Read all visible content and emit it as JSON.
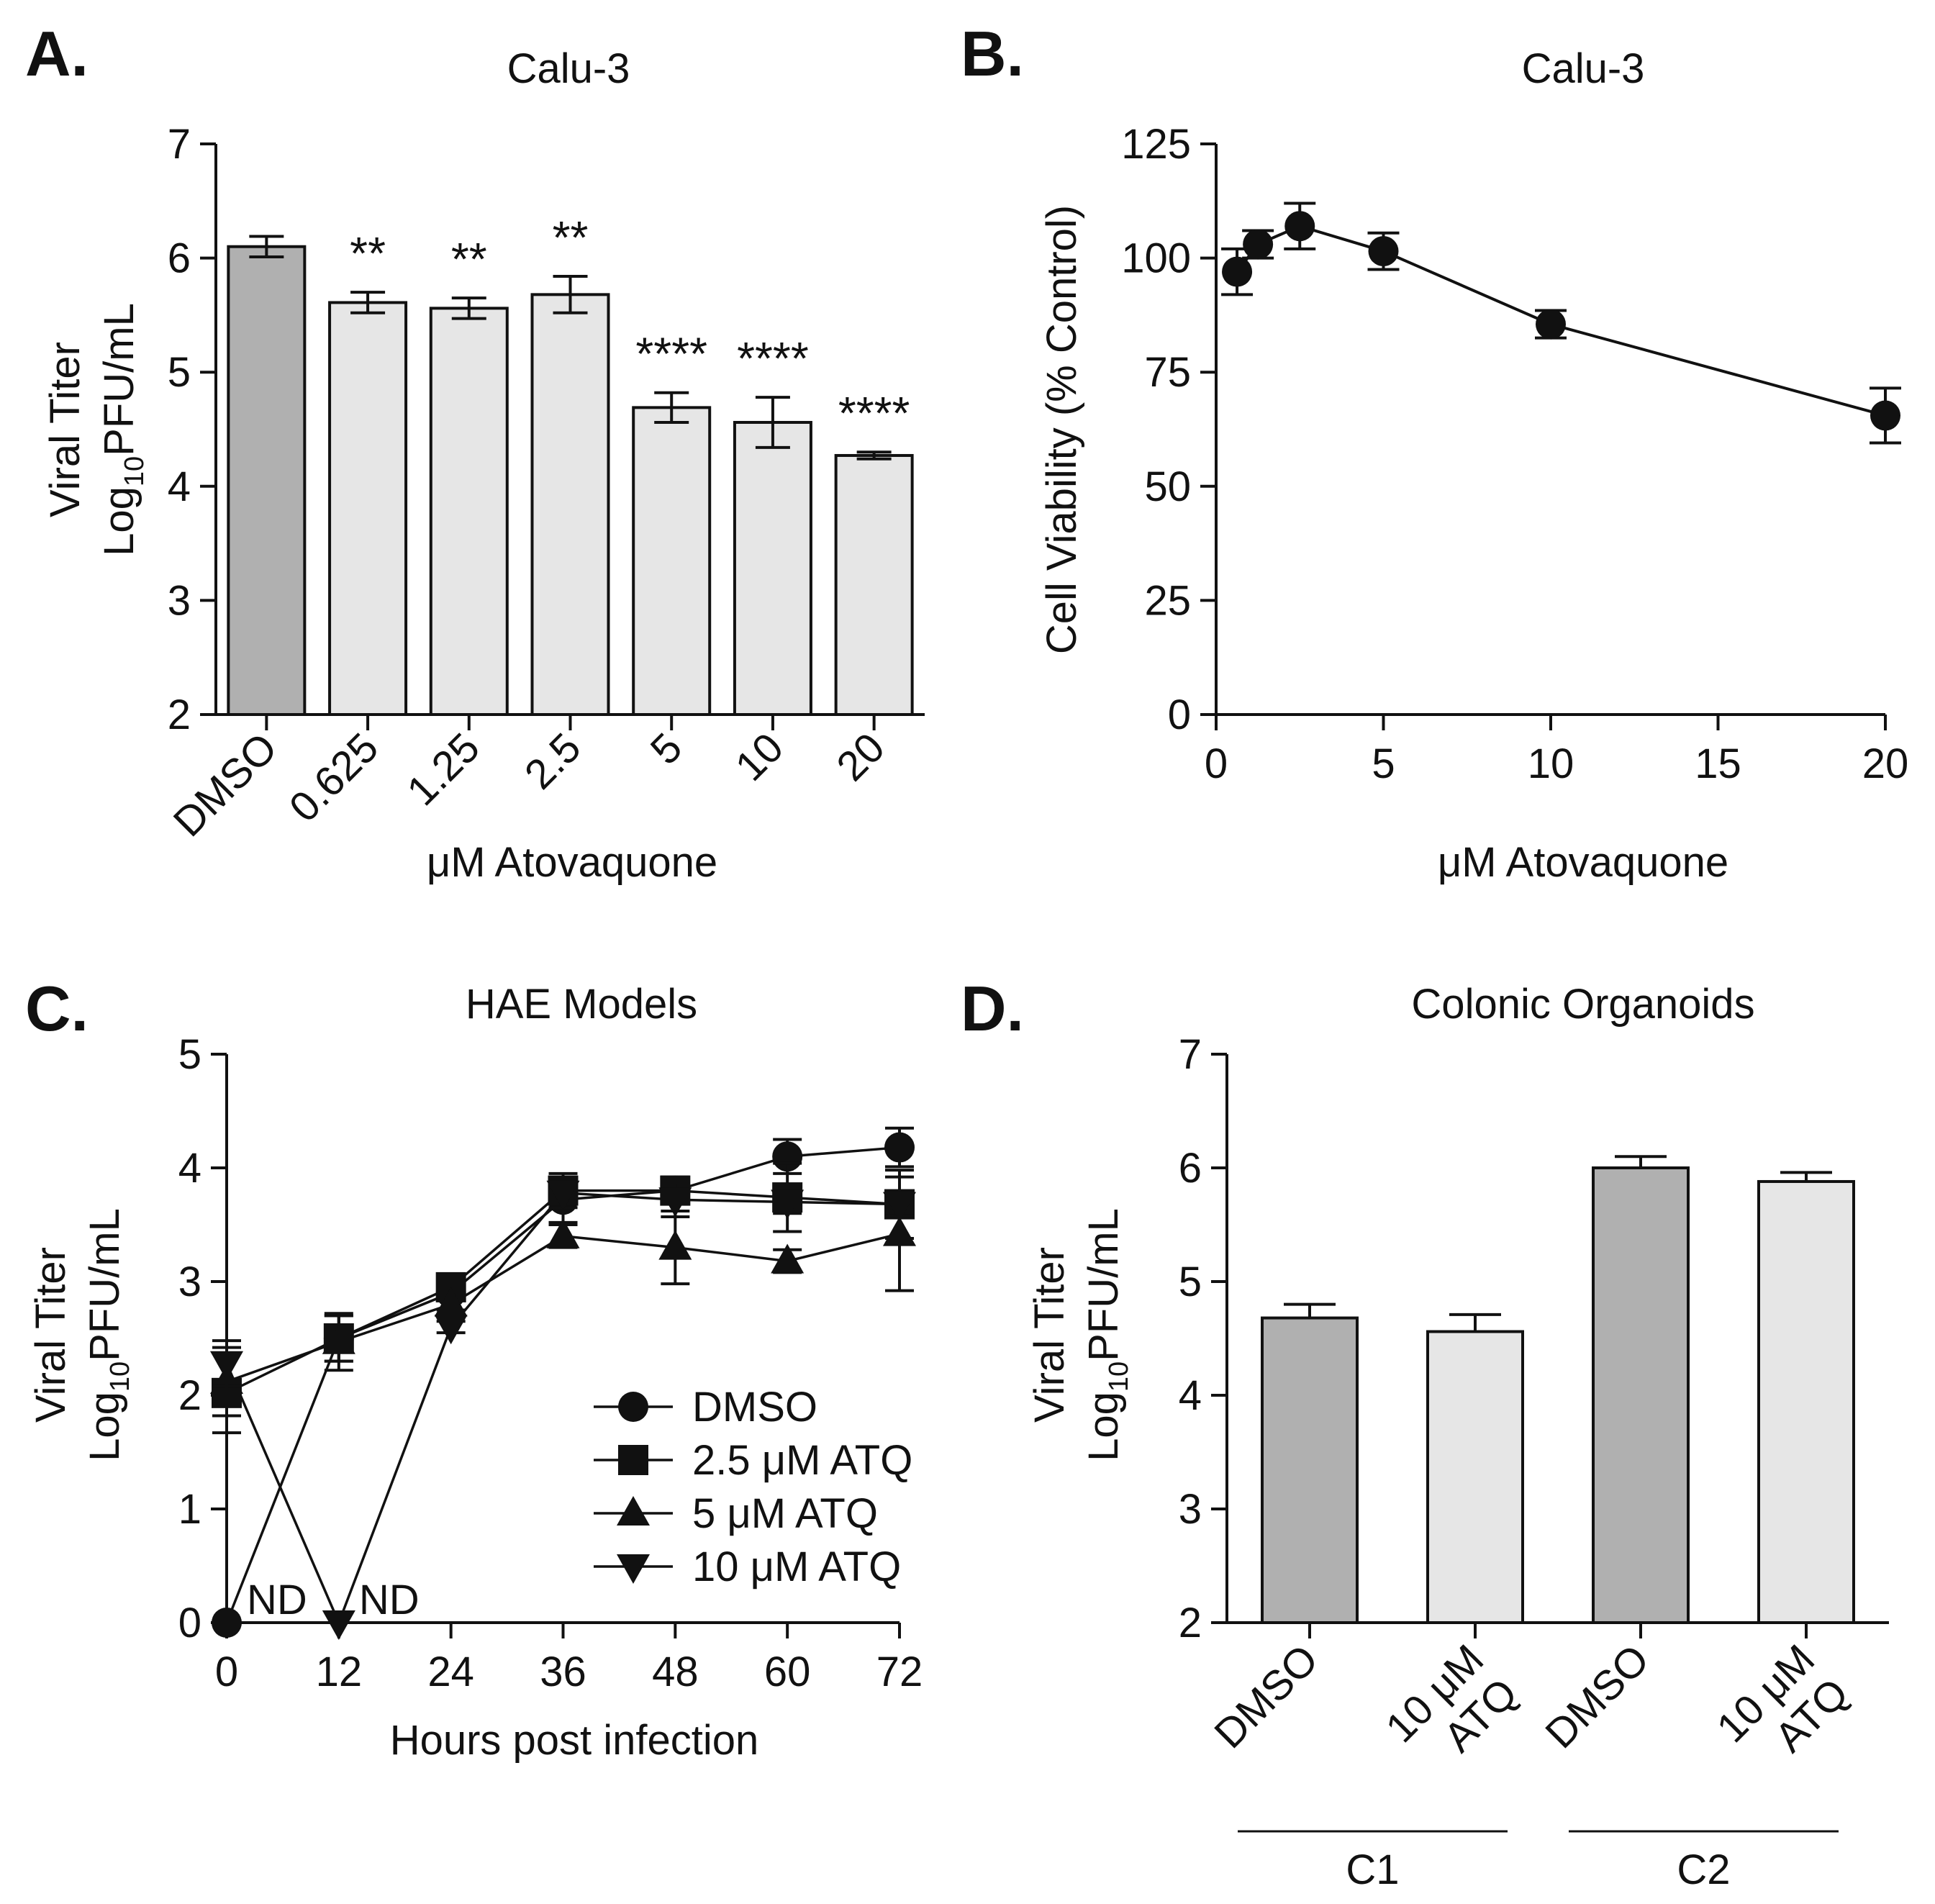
{
  "colors": {
    "ink": "#111111",
    "dmso_bar": "#b0b0b0",
    "treated_bar": "#e6e6e6",
    "marker": "#111111"
  },
  "panels": [
    {
      "id": "A",
      "letter": "A.",
      "chart_data": {
        "type": "bar",
        "title": "Calu-3",
        "xlabel": "μM Atovaquone",
        "ylabel_line1": "Viral Titer",
        "ylabel_log": "Log",
        "ylabel_sub": "10",
        "ylabel_rest": "PFU/mL",
        "ylim": [
          2,
          7
        ],
        "yticks": [
          "2",
          "3",
          "4",
          "5",
          "6",
          "7"
        ],
        "categories": [
          "DMSO",
          "0.625",
          "1.25",
          "2.5",
          "5",
          "10",
          "20"
        ],
        "values": [
          6.1,
          5.61,
          5.56,
          5.68,
          4.69,
          4.56,
          4.27
        ],
        "errors": [
          0.09,
          0.09,
          0.09,
          0.16,
          0.13,
          0.22,
          0.03
        ],
        "fill": [
          "dmso",
          "treated",
          "treated",
          "treated",
          "treated",
          "treated",
          "treated"
        ],
        "significance": [
          "",
          "**",
          "**",
          "**",
          "****",
          "****",
          "****"
        ]
      }
    },
    {
      "id": "B",
      "letter": "B.",
      "chart_data": {
        "type": "line",
        "title": "Calu-3",
        "xlabel": "μM Atovaquone",
        "ylabel": "Cell Viability (% Control)",
        "xlim": [
          0,
          20
        ],
        "xticks": [
          "0",
          "5",
          "10",
          "15",
          "20"
        ],
        "ylim": [
          0,
          125
        ],
        "yticks": [
          "0",
          "25",
          "50",
          "75",
          "100",
          "125"
        ],
        "series": [
          {
            "name": "Viability",
            "x": [
              0.625,
              1.25,
              2.5,
              5,
              10,
              20
            ],
            "y": [
              97,
              103,
              107,
              101.5,
              85.5,
              65.5
            ],
            "err": [
              5,
              3,
              5,
              4,
              3,
              6
            ]
          }
        ]
      }
    },
    {
      "id": "C",
      "letter": "C.",
      "chart_data": {
        "type": "line",
        "title": "HAE Models",
        "xlabel": "Hours post infection",
        "ylabel_line1": "Viral Titer",
        "ylabel_log": "Log",
        "ylabel_sub": "10",
        "ylabel_rest": "PFU/mL",
        "xlim": [
          0,
          72
        ],
        "xticks": [
          "0",
          "12",
          "24",
          "36",
          "48",
          "60",
          "72"
        ],
        "ylim": [
          0,
          5
        ],
        "yticks": [
          "0",
          "1",
          "2",
          "3",
          "4",
          "5"
        ],
        "annotations": [
          {
            "text": "ND",
            "x": 0,
            "y": 0
          },
          {
            "text": "ND",
            "x": 12,
            "y": 0
          }
        ],
        "series": [
          {
            "name": "DMSO",
            "marker": "circle",
            "x": [
              0,
              12,
              24,
              36,
              48,
              60,
              72
            ],
            "y": [
              0,
              2.5,
              2.9,
              3.72,
              3.8,
              4.1,
              4.18
            ],
            "err": [
              0,
              0.2,
              0.05,
              0.2,
              0.1,
              0.15,
              0.17
            ]
          },
          {
            "name": "2.5 μM ATQ",
            "marker": "square",
            "x": [
              0,
              12,
              24,
              36,
              48,
              60,
              72
            ],
            "y": [
              2.02,
              2.5,
              2.95,
              3.8,
              3.8,
              3.74,
              3.68
            ],
            "err": [
              0.35,
              0.2,
              0.05,
              0.15,
              0.12,
              0.3,
              0.3
            ]
          },
          {
            "name": "5 μM ATQ",
            "marker": "triangle-up",
            "x": [
              0,
              12,
              24,
              36,
              48,
              60,
              72
            ],
            "y": [
              2.12,
              2.47,
              2.8,
              3.4,
              3.3,
              3.18,
              3.42
            ],
            "err": [
              0.3,
              0.25,
              0.05,
              0.1,
              0.32,
              0.1,
              0.5
            ]
          },
          {
            "name": "10 μM ATQ",
            "marker": "triangle-down",
            "x": [
              0,
              12,
              24,
              36,
              48,
              60,
              72
            ],
            "y": [
              2.28,
              0,
              2.6,
              3.78,
              3.72,
              3.7,
              3.68
            ],
            "err": [
              0.2,
              0,
              0.05,
              0.1,
              0.15,
              0.1,
              0.1
            ]
          }
        ]
      }
    },
    {
      "id": "D",
      "letter": "D.",
      "chart_data": {
        "type": "bar",
        "title": "Colonic Organoids",
        "ylabel_line1": "Viral Titer",
        "ylabel_log": "Log",
        "ylabel_sub": "10",
        "ylabel_rest": "PFU/mL",
        "ylim": [
          2,
          7
        ],
        "yticks": [
          "2",
          "3",
          "4",
          "5",
          "6",
          "7"
        ],
        "categories": [
          {
            "line1": "DMSO",
            "line2": ""
          },
          {
            "line1": "10 μM",
            "line2": "ATQ"
          },
          {
            "line1": "DMSO",
            "line2": ""
          },
          {
            "line1": "10 μM",
            "line2": "ATQ"
          }
        ],
        "values": [
          4.68,
          4.56,
          6.0,
          5.88
        ],
        "errors": [
          0.12,
          0.15,
          0.1,
          0.08
        ],
        "fill": [
          "dmso",
          "treated",
          "dmso",
          "treated"
        ],
        "groups": [
          {
            "label": "C1",
            "members": [
              0,
              1
            ]
          },
          {
            "label": "C2",
            "members": [
              2,
              3
            ]
          }
        ]
      }
    }
  ]
}
